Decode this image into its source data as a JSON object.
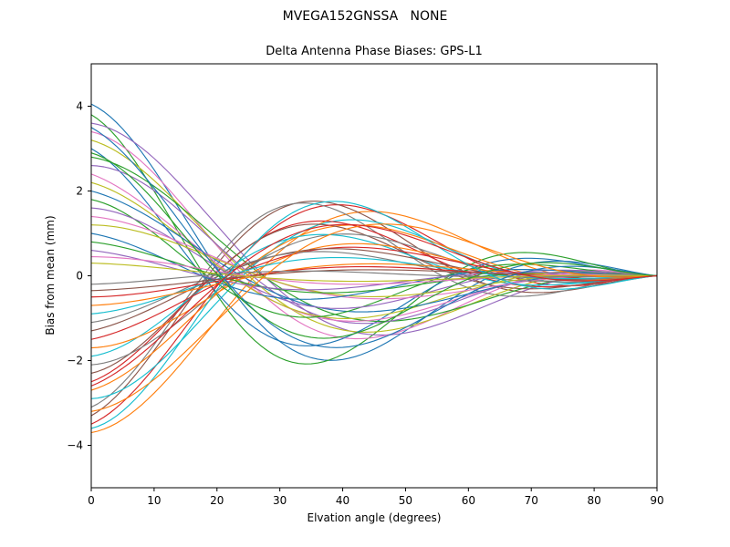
{
  "chart_data": {
    "type": "line",
    "title": "MVEGA152GNSSA   NONE",
    "subtitle": "Delta Antenna Phase Biases: GPS-L1",
    "xlabel": "Elvation angle (degrees)",
    "ylabel": "Bias from mean (mm)",
    "xlim": [
      0,
      90
    ],
    "ylim": [
      -5,
      5
    ],
    "xticks": [
      0,
      10,
      20,
      30,
      40,
      50,
      60,
      70,
      80,
      90
    ],
    "yticks": [
      -4,
      -2,
      0,
      2,
      4
    ],
    "grid": false,
    "legend": "none",
    "background": "#ffffff",
    "axis_color": "#000000",
    "colors": [
      "#1f77b4",
      "#ff7f0e",
      "#2ca02c",
      "#d62728",
      "#9467bd",
      "#8c564b",
      "#e377c2",
      "#7f7f7f",
      "#bcbd22",
      "#17becf"
    ],
    "curve_model": {
      "type": "damped_cosine",
      "description": "bias(x) = start_mm * (1 - x/90)^1.2 * cos(2*pi*x/period + phase)/cos(phase); all curves converge to 0 mm at 90 deg elevation",
      "envelope_exponent": 1.2,
      "x_max_deg": 90
    },
    "series": [
      {
        "start_mm": 4.05,
        "period": 86,
        "phase": 0.05
      },
      {
        "start_mm": -3.7,
        "period": 98,
        "phase": -0.1
      },
      {
        "start_mm": 3.8,
        "period": 78,
        "phase": 0.12
      },
      {
        "start_mm": -3.5,
        "period": 90,
        "phase": 0.08
      },
      {
        "start_mm": 3.6,
        "period": 102,
        "phase": -0.12
      },
      {
        "start_mm": -3.3,
        "period": 82,
        "phase": 0.15
      },
      {
        "start_mm": 3.4,
        "period": 94,
        "phase": -0.05
      },
      {
        "start_mm": -3.1,
        "period": 76,
        "phase": 0.1
      },
      {
        "start_mm": 3.2,
        "period": 100,
        "phase": 0.0
      },
      {
        "start_mm": -2.9,
        "period": 88,
        "phase": -0.15
      },
      {
        "start_mm": 3.0,
        "period": 80,
        "phase": 0.18
      },
      {
        "start_mm": -2.7,
        "period": 96,
        "phase": 0.05
      },
      {
        "start_mm": 2.8,
        "period": 104,
        "phase": -0.08
      },
      {
        "start_mm": -2.5,
        "period": 84,
        "phase": 0.12
      },
      {
        "start_mm": 2.6,
        "period": 92,
        "phase": -0.18
      },
      {
        "start_mm": -2.3,
        "period": 78,
        "phase": 0.02
      },
      {
        "start_mm": 2.4,
        "period": 100,
        "phase": 0.15
      },
      {
        "start_mm": -2.1,
        "period": 86,
        "phase": -0.12
      },
      {
        "start_mm": 2.2,
        "period": 94,
        "phase": 0.08
      },
      {
        "start_mm": -1.9,
        "period": 80,
        "phase": -0.02
      },
      {
        "start_mm": 2.0,
        "period": 102,
        "phase": 0.1
      },
      {
        "start_mm": -1.7,
        "period": 90,
        "phase": -0.15
      },
      {
        "start_mm": 1.8,
        "period": 76,
        "phase": 0.05
      },
      {
        "start_mm": -1.5,
        "period": 98,
        "phase": 0.12
      },
      {
        "start_mm": 1.6,
        "period": 84,
        "phase": -0.1
      },
      {
        "start_mm": -1.3,
        "period": 92,
        "phase": 0.18
      },
      {
        "start_mm": 1.4,
        "period": 104,
        "phase": -0.05
      },
      {
        "start_mm": -1.1,
        "period": 82,
        "phase": 0.08
      },
      {
        "start_mm": 1.2,
        "period": 96,
        "phase": -0.18
      },
      {
        "start_mm": -0.9,
        "period": 88,
        "phase": 0.02
      },
      {
        "start_mm": 1.0,
        "period": 78,
        "phase": 0.15
      },
      {
        "start_mm": -0.7,
        "period": 100,
        "phase": -0.08
      },
      {
        "start_mm": 0.8,
        "period": 86,
        "phase": 0.1
      },
      {
        "start_mm": -0.5,
        "period": 94,
        "phase": -0.12
      },
      {
        "start_mm": 0.6,
        "period": 80,
        "phase": 0.18
      },
      {
        "start_mm": -0.35,
        "period": 102,
        "phase": 0.0
      },
      {
        "start_mm": 0.45,
        "period": 90,
        "phase": -0.15
      },
      {
        "start_mm": -0.2,
        "period": 76,
        "phase": 0.12
      },
      {
        "start_mm": 0.3,
        "period": 98,
        "phase": 0.05
      },
      {
        "start_mm": -3.6,
        "period": 84,
        "phase": -0.05
      },
      {
        "start_mm": 3.5,
        "period": 92,
        "phase": 0.15
      },
      {
        "start_mm": -3.2,
        "period": 104,
        "phase": -0.1
      },
      {
        "start_mm": 2.9,
        "period": 82,
        "phase": 0.02
      },
      {
        "start_mm": -2.6,
        "period": 96,
        "phase": 0.15
      }
    ]
  }
}
